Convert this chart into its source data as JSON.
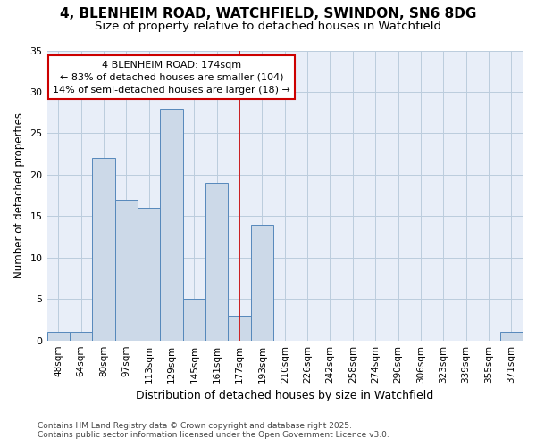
{
  "title_line1": "4, BLENHEIM ROAD, WATCHFIELD, SWINDON, SN6 8DG",
  "title_line2": "Size of property relative to detached houses in Watchfield",
  "xlabel": "Distribution of detached houses by size in Watchfield",
  "ylabel": "Number of detached properties",
  "categories": [
    "48sqm",
    "64sqm",
    "80sqm",
    "97sqm",
    "113sqm",
    "129sqm",
    "145sqm",
    "161sqm",
    "177sqm",
    "193sqm",
    "210sqm",
    "226sqm",
    "242sqm",
    "258sqm",
    "274sqm",
    "290sqm",
    "306sqm",
    "323sqm",
    "339sqm",
    "355sqm",
    "371sqm"
  ],
  "values": [
    1,
    1,
    22,
    17,
    16,
    28,
    5,
    19,
    3,
    14,
    0,
    0,
    0,
    0,
    0,
    0,
    0,
    0,
    0,
    0,
    1
  ],
  "bar_color": "#ccd9e8",
  "bar_edge_color": "#5588bb",
  "grid_color": "#bbccdd",
  "bg_color": "#e8eef8",
  "vline_color": "#cc0000",
  "vline_x_index": 8,
  "annotation_text": "4 BLENHEIM ROAD: 174sqm\n← 83% of detached houses are smaller (104)\n14% of semi-detached houses are larger (18) →",
  "annotation_box_edgecolor": "#cc0000",
  "footer_line1": "Contains HM Land Registry data © Crown copyright and database right 2025.",
  "footer_line2": "Contains public sector information licensed under the Open Government Licence v3.0.",
  "ylim": [
    0,
    35
  ],
  "yticks": [
    0,
    5,
    10,
    15,
    20,
    25,
    30,
    35
  ]
}
